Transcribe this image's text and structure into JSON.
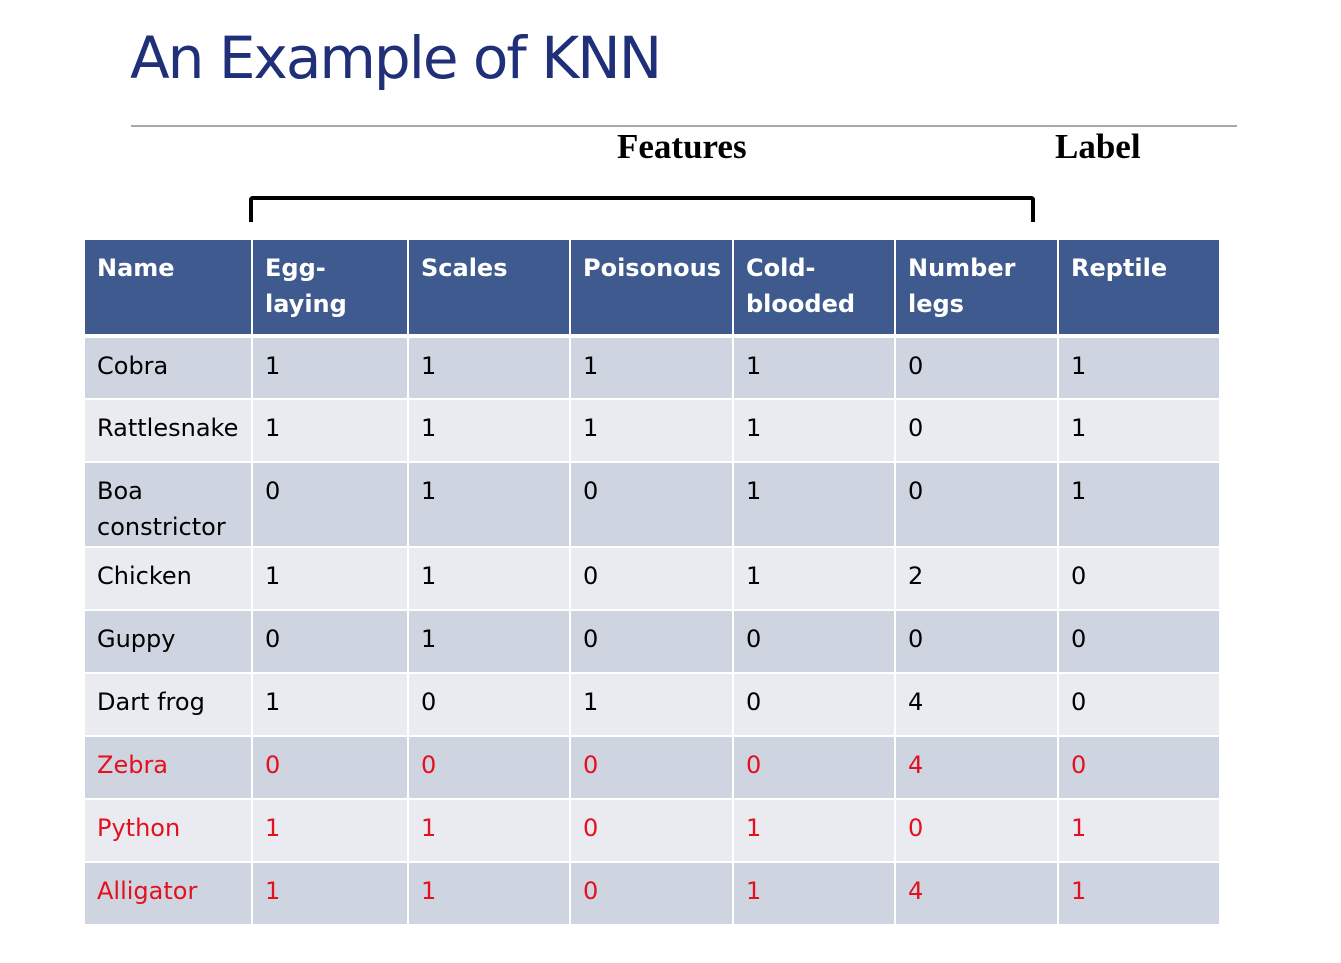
{
  "title": "An Example of KNN",
  "captions": {
    "features": "Features",
    "label": "Label"
  },
  "table": {
    "headers": [
      "Name",
      "Egg-laying",
      "Scales",
      "Poisonous",
      "Cold-\nblooded",
      "Number\nlegs",
      "Reptile"
    ],
    "rows": [
      {
        "cells": [
          "Cobra",
          "1",
          "1",
          "1",
          "1",
          "0",
          "1"
        ],
        "highlight": false
      },
      {
        "cells": [
          "Rattlesnake",
          "1",
          "1",
          "1",
          "1",
          "0",
          "1"
        ],
        "highlight": false
      },
      {
        "cells": [
          "Boa\nconstrictor",
          "0",
          "1",
          "0",
          "1",
          "0",
          "1"
        ],
        "highlight": false
      },
      {
        "cells": [
          "Chicken",
          "1",
          "1",
          "0",
          "1",
          "2",
          "0"
        ],
        "highlight": false
      },
      {
        "cells": [
          "Guppy",
          "0",
          "1",
          "0",
          "0",
          "0",
          "0"
        ],
        "highlight": false
      },
      {
        "cells": [
          "Dart frog",
          "1",
          "0",
          "1",
          "0",
          "4",
          "0"
        ],
        "highlight": false
      },
      {
        "cells": [
          "Zebra",
          "0",
          "0",
          "0",
          "0",
          "4",
          "0"
        ],
        "highlight": true
      },
      {
        "cells": [
          "Python",
          "1",
          "1",
          "0",
          "1",
          "0",
          "1"
        ],
        "highlight": true
      },
      {
        "cells": [
          "Alligator",
          "1",
          "1",
          "0",
          "1",
          "4",
          "1"
        ],
        "highlight": true
      }
    ]
  },
  "colors": {
    "title": "#1f2f78",
    "header_bg": "#3e5a8f",
    "row_odd": "#cfd5e0",
    "row_even": "#e9ebf0",
    "highlight_text": "#e4101d"
  }
}
